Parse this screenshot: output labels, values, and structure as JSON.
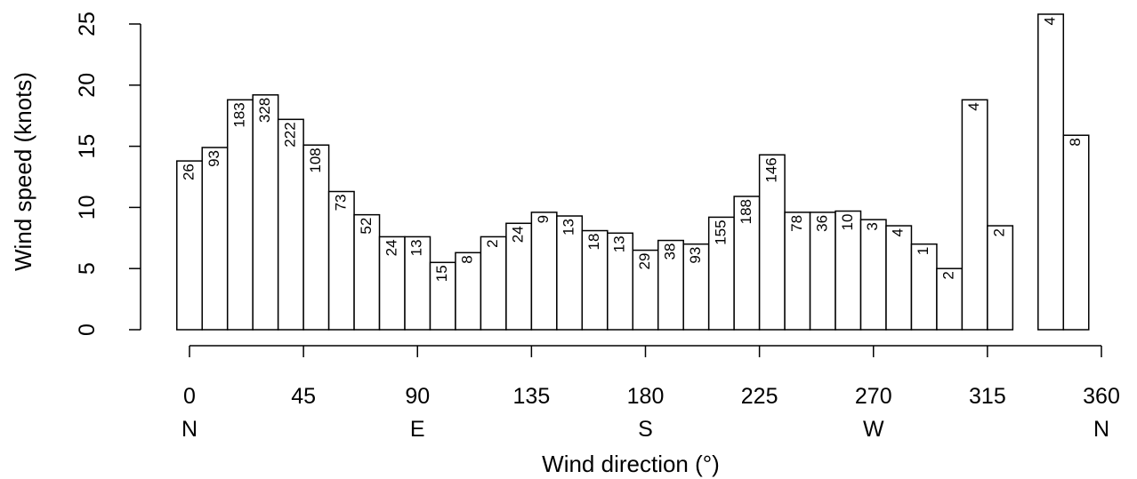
{
  "chart_data": {
    "type": "bar",
    "title": "",
    "xlabel": "Wind direction (°)",
    "ylabel": "Wind speed (knots)",
    "xlim": [
      0,
      360
    ],
    "ylim": [
      0,
      25
    ],
    "x_ticks": [
      "0",
      "45",
      "90",
      "135",
      "180",
      "225",
      "270",
      "315",
      "360"
    ],
    "x_compass": [
      "N",
      "E",
      "S",
      "W",
      "N"
    ],
    "y_ticks": [
      "0",
      "5",
      "10",
      "15",
      "20",
      "25"
    ],
    "bin_width": 10,
    "bars": [
      {
        "x": 0,
        "y": 13.8,
        "label": "26"
      },
      {
        "x": 10,
        "y": 14.9,
        "label": "93"
      },
      {
        "x": 20,
        "y": 18.8,
        "label": "183"
      },
      {
        "x": 30,
        "y": 19.2,
        "label": "328"
      },
      {
        "x": 40,
        "y": 17.2,
        "label": "222"
      },
      {
        "x": 50,
        "y": 15.1,
        "label": "108"
      },
      {
        "x": 60,
        "y": 11.3,
        "label": "73"
      },
      {
        "x": 70,
        "y": 9.4,
        "label": "52"
      },
      {
        "x": 80,
        "y": 7.6,
        "label": "24"
      },
      {
        "x": 90,
        "y": 7.6,
        "label": "13"
      },
      {
        "x": 100,
        "y": 5.5,
        "label": "15"
      },
      {
        "x": 110,
        "y": 6.3,
        "label": "8"
      },
      {
        "x": 120,
        "y": 7.6,
        "label": "2"
      },
      {
        "x": 130,
        "y": 8.7,
        "label": "24"
      },
      {
        "x": 140,
        "y": 9.6,
        "label": "9"
      },
      {
        "x": 150,
        "y": 9.3,
        "label": "13"
      },
      {
        "x": 160,
        "y": 8.1,
        "label": "18"
      },
      {
        "x": 170,
        "y": 7.9,
        "label": "13"
      },
      {
        "x": 180,
        "y": 6.5,
        "label": "29"
      },
      {
        "x": 190,
        "y": 7.3,
        "label": "38"
      },
      {
        "x": 200,
        "y": 7.0,
        "label": "93"
      },
      {
        "x": 210,
        "y": 9.2,
        "label": "155"
      },
      {
        "x": 220,
        "y": 10.9,
        "label": "188"
      },
      {
        "x": 230,
        "y": 14.3,
        "label": "146"
      },
      {
        "x": 240,
        "y": 9.6,
        "label": "78"
      },
      {
        "x": 250,
        "y": 9.6,
        "label": "36"
      },
      {
        "x": 260,
        "y": 9.7,
        "label": "10"
      },
      {
        "x": 270,
        "y": 9.0,
        "label": "3"
      },
      {
        "x": 280,
        "y": 8.5,
        "label": "4"
      },
      {
        "x": 290,
        "y": 7.0,
        "label": "1"
      },
      {
        "x": 300,
        "y": 5.0,
        "label": "2"
      },
      {
        "x": 310,
        "y": 18.8,
        "label": "4"
      },
      {
        "x": 320,
        "y": 8.5,
        "label": "2"
      },
      {
        "x": 340,
        "y": 25.8,
        "label": "4"
      },
      {
        "x": 350,
        "y": 15.9,
        "label": "8"
      }
    ]
  }
}
